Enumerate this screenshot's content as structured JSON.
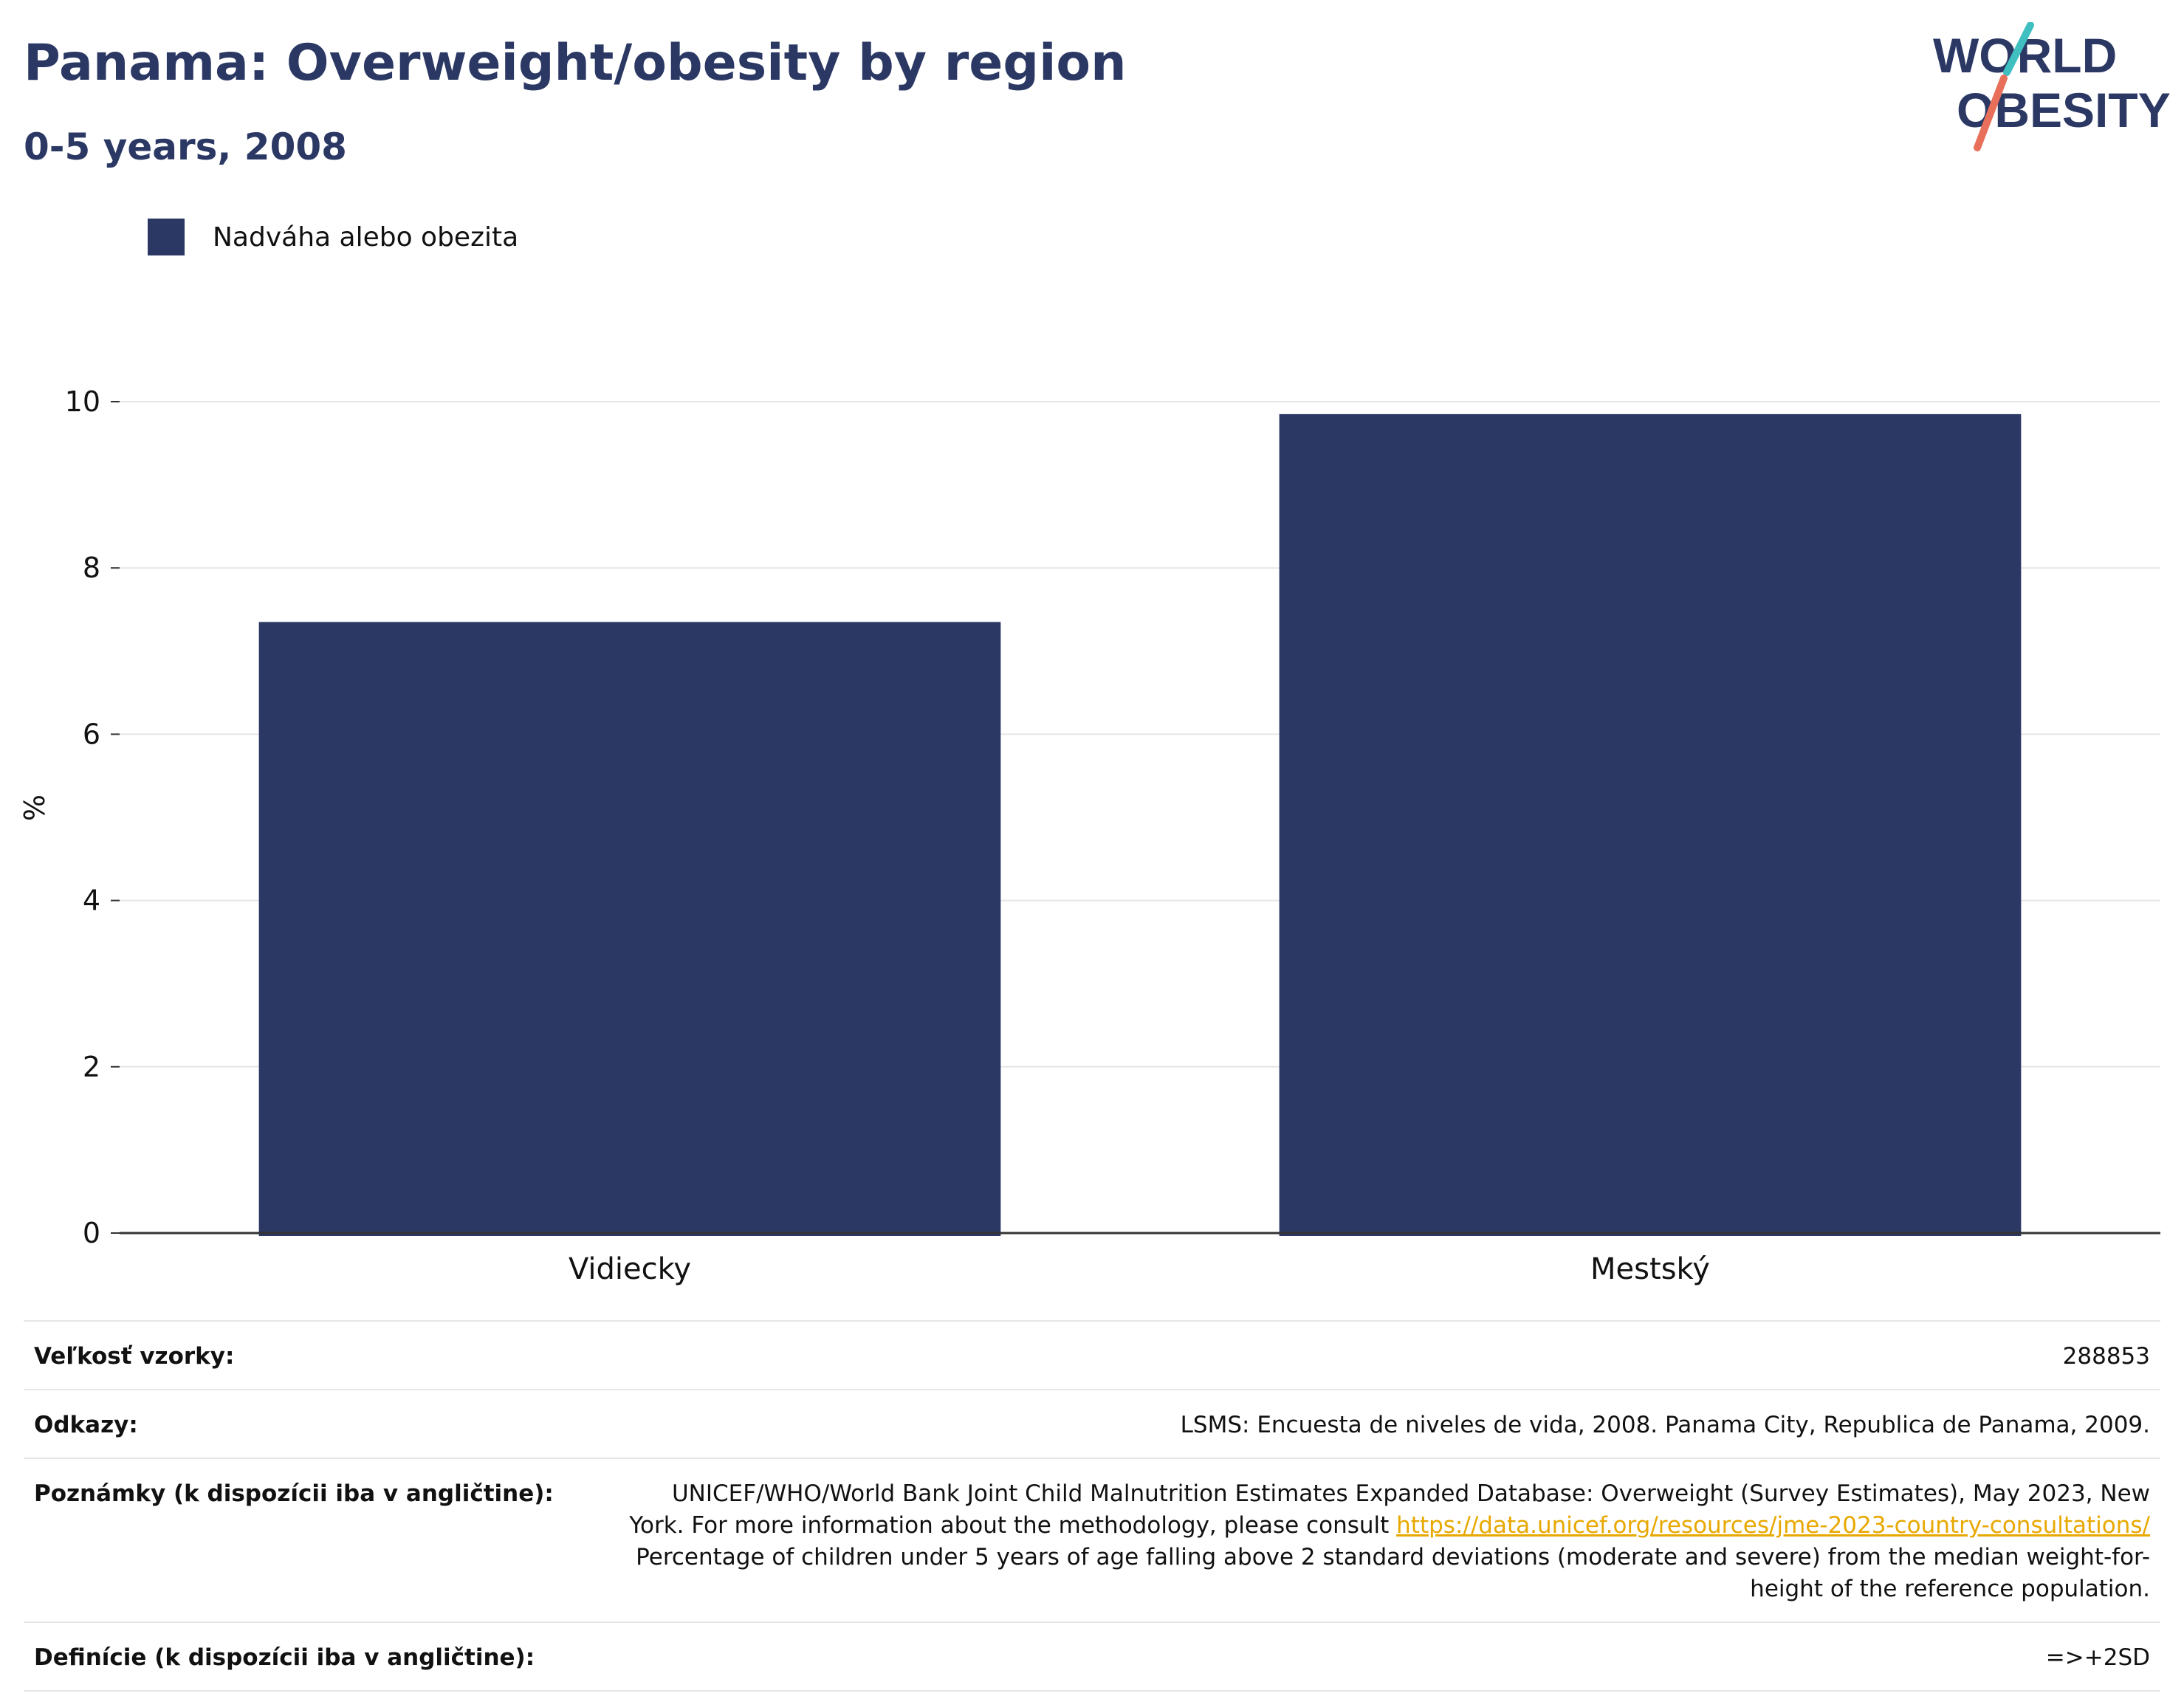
{
  "header": {
    "title": "Panama: Overweight/obesity by region",
    "subtitle": "0-5 years, 2008"
  },
  "logo": {
    "line1": "WORLD",
    "line2": "OBESITY",
    "colors": {
      "text": "#2b3864",
      "slash_top": "#3fbfbf",
      "slash_bottom": "#e8705a"
    }
  },
  "legend": {
    "label": "Nadváha alebo obezita",
    "color": "#2b3864"
  },
  "chart_data": {
    "type": "bar",
    "categories": [
      "Vidiecky",
      "Mestský"
    ],
    "series": [
      {
        "name": "Nadváha alebo obezita",
        "values": [
          7.35,
          9.85
        ],
        "color": "#2b3864"
      }
    ],
    "ylabel": "%",
    "xlabel": "",
    "ylim": [
      0,
      10
    ],
    "yticks": [
      0,
      2,
      4,
      6,
      8,
      10
    ],
    "grid": true,
    "legend_position": "top-left"
  },
  "meta": {
    "sample_size_label": "Veľkosť vzorky:",
    "sample_size_value": "288853",
    "references_label": "Odkazy:",
    "references_value": "LSMS: Encuesta de niveles de vida, 2008. Panama City, Republica de Panama, 2009.",
    "notes_label": "Poznámky (k dispozícii iba v angličtine):",
    "notes_text_1": "UNICEF/WHO/World Bank Joint Child Malnutrition Estimates Expanded Database: Overweight (Survey Estimates), May 2023, New York. For more information about the methodology, please consult",
    "notes_link": "https://data.unicef.org/resources/jme-2023-country-consultations/",
    "notes_text_2": "Percentage of children under 5 years of age falling above 2 standard deviations (moderate and severe) from the median weight-for-height of the reference population.",
    "definitions_label": "Definície (k dispozícii iba v angličtine):",
    "definitions_value": "=>+2SD"
  }
}
